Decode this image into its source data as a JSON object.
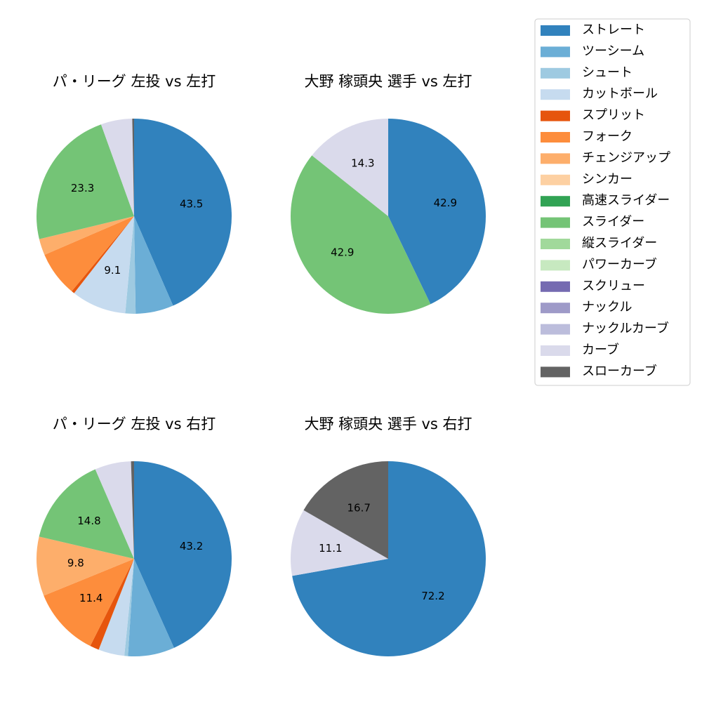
{
  "chart_data": [
    {
      "type": "pie",
      "title": "パ・リーグ 左投 vs 左打",
      "categories": [
        "ストレート",
        "ツーシーム",
        "シュート",
        "カットボール",
        "スプリット",
        "フォーク",
        "チェンジアップ",
        "スライダー",
        "カーブ",
        "スローカーブ"
      ],
      "values": [
        43.5,
        6.3,
        1.7,
        9.1,
        0.5,
        7.5,
        2.7,
        23.3,
        5.2,
        0.3
      ],
      "colors": [
        "#3182bd",
        "#6baed6",
        "#9ecae1",
        "#c6dbef",
        "#e6550d",
        "#fd8d3c",
        "#fdae6b",
        "#74c476",
        "#dadaeb",
        "#636363"
      ]
    },
    {
      "type": "pie",
      "title": "大野 稼頭央 選手 vs 左打",
      "categories": [
        "ストレート",
        "スライダー",
        "カーブ"
      ],
      "values": [
        42.9,
        42.9,
        14.3
      ],
      "colors": [
        "#3182bd",
        "#74c476",
        "#dadaeb"
      ]
    },
    {
      "type": "pie",
      "title": "パ・リーグ 左投 vs 右打",
      "categories": [
        "ストレート",
        "ツーシーム",
        "シュート",
        "カットボール",
        "スプリット",
        "フォーク",
        "チェンジアップ",
        "スライダー",
        "カーブ",
        "スローカーブ"
      ],
      "values": [
        43.2,
        7.7,
        0.6,
        4.3,
        1.5,
        11.4,
        9.8,
        14.8,
        6.0,
        0.5
      ],
      "colors": [
        "#3182bd",
        "#6baed6",
        "#9ecae1",
        "#c6dbef",
        "#e6550d",
        "#fd8d3c",
        "#fdae6b",
        "#74c476",
        "#dadaeb",
        "#636363"
      ]
    },
    {
      "type": "pie",
      "title": "大野 稼頭央 選手 vs 右打",
      "categories": [
        "ストレート",
        "カーブ",
        "スローカーブ"
      ],
      "values": [
        72.2,
        11.1,
        16.7
      ],
      "colors": [
        "#3182bd",
        "#dadaeb",
        "#636363"
      ]
    }
  ],
  "legend": {
    "labels": [
      "ストレート",
      "ツーシーム",
      "シュート",
      "カットボール",
      "スプリット",
      "フォーク",
      "チェンジアップ",
      "シンカー",
      "高速スライダー",
      "スライダー",
      "縦スライダー",
      "パワーカーブ",
      "スクリュー",
      "ナックル",
      "ナックルカーブ",
      "カーブ",
      "スローカーブ"
    ],
    "colors": [
      "#3182bd",
      "#6baed6",
      "#9ecae1",
      "#c6dbef",
      "#e6550d",
      "#fd8d3c",
      "#fdae6b",
      "#fdd0a2",
      "#31a354",
      "#74c476",
      "#a1d99b",
      "#c7e9c0",
      "#756bb1",
      "#9e9ac8",
      "#bcbddc",
      "#dadaeb",
      "#636363"
    ]
  }
}
